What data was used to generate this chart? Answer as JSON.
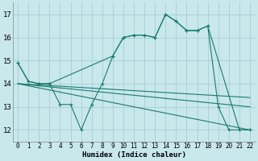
{
  "xlabel": "Humidex (Indice chaleur)",
  "xlim": [
    -0.5,
    22.5
  ],
  "ylim": [
    11.5,
    17.5
  ],
  "yticks": [
    12,
    13,
    14,
    15,
    16,
    17
  ],
  "xticks": [
    0,
    1,
    2,
    3,
    4,
    5,
    6,
    7,
    8,
    9,
    10,
    11,
    12,
    13,
    14,
    15,
    16,
    17,
    18,
    19,
    20,
    21,
    22
  ],
  "bg_color": "#c8e8ec",
  "grid_color": "#a8cdd4",
  "line_color": "#1a7a6e",
  "lines": [
    {
      "x": [
        0,
        1,
        2,
        3,
        4,
        5,
        6,
        7,
        8,
        9,
        10,
        11,
        12,
        13,
        14,
        15,
        16,
        17,
        18,
        19,
        20,
        21,
        22
      ],
      "y": [
        14.9,
        14.1,
        14.0,
        14.0,
        13.1,
        13.1,
        12.0,
        13.1,
        14.0,
        15.2,
        16.0,
        16.1,
        16.1,
        16.0,
        17.0,
        16.7,
        16.3,
        16.3,
        16.5,
        13.0,
        12.0,
        12.0,
        12.0
      ],
      "marker": true
    },
    {
      "x": [
        0,
        22
      ],
      "y": [
        14.0,
        12.0
      ],
      "marker": false
    },
    {
      "x": [
        0,
        22
      ],
      "y": [
        14.0,
        13.0
      ],
      "marker": false
    },
    {
      "x": [
        0,
        22
      ],
      "y": [
        14.0,
        13.4
      ],
      "marker": false
    },
    {
      "x": [
        0,
        1,
        2,
        3,
        9,
        10,
        11,
        12,
        13,
        14,
        15,
        16,
        17,
        18,
        21,
        22
      ],
      "y": [
        14.9,
        14.1,
        14.0,
        14.0,
        15.2,
        16.0,
        16.1,
        16.1,
        16.0,
        17.0,
        16.7,
        16.3,
        16.3,
        16.5,
        12.0,
        12.0
      ],
      "marker": true
    }
  ]
}
